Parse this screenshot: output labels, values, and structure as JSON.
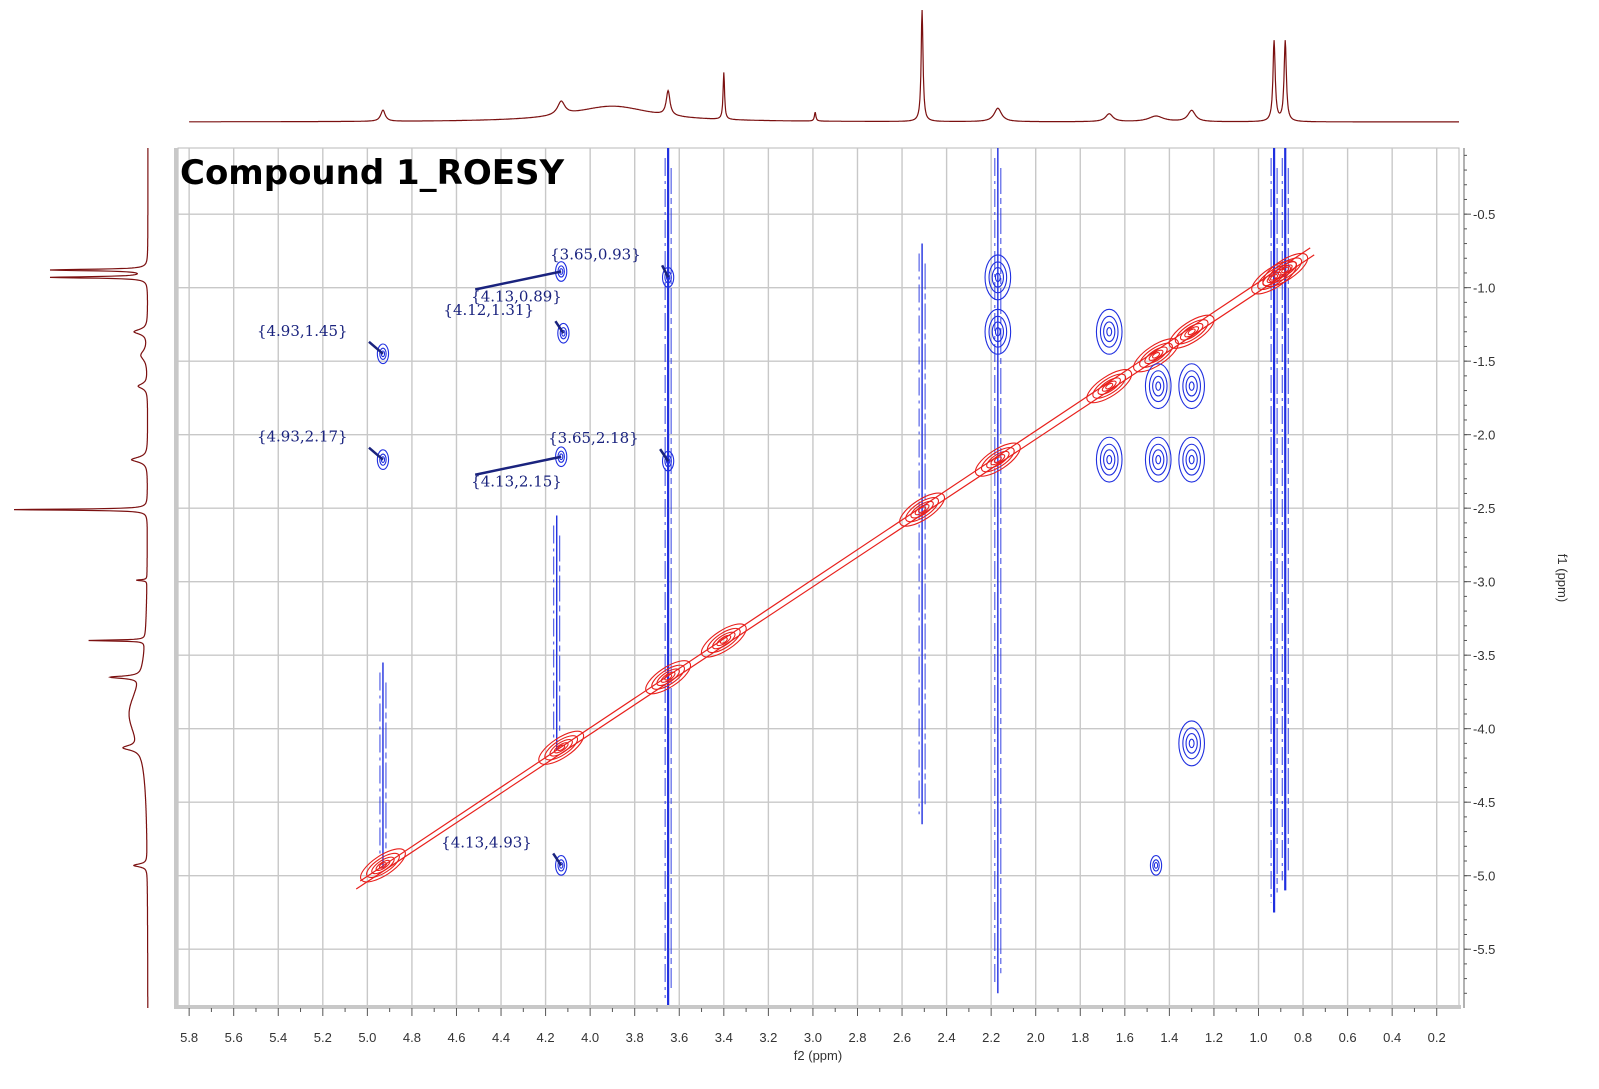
{
  "chart_data": {
    "type": "scatter",
    "subtype": "2D NMR ROESY contour plot",
    "title": "Compound 1_ROESY",
    "xlabel": "f2 (ppm)",
    "ylabel": "f1 (ppm)",
    "xlim": [
      5.85,
      0.1
    ],
    "ylim": [
      0.05,
      5.9
    ],
    "x_ticks": [
      "5.8",
      "5.6",
      "5.4",
      "5.2",
      "5.0",
      "4.8",
      "4.6",
      "4.4",
      "4.2",
      "4.0",
      "3.8",
      "3.6",
      "3.4",
      "3.2",
      "3.0",
      "2.8",
      "2.6",
      "2.4",
      "2.2",
      "2.0",
      "1.8",
      "1.6",
      "1.4",
      "1.2",
      "1.0",
      "0.8",
      "0.6",
      "0.4",
      "0.2"
    ],
    "y_ticks": [
      "0.5",
      "1.0",
      "1.5",
      "2.0",
      "2.5",
      "3.0",
      "3.5",
      "4.0",
      "4.5",
      "5.0",
      "5.5"
    ],
    "grid": true,
    "colors": {
      "positive_contour": "#e8201c",
      "negative_contour": "#1f2fe0",
      "projection": "#7b1010",
      "label": "#1a237e",
      "grid": "#c8c8c8"
    },
    "annotations": [
      {
        "text": "{3.65,0.93}",
        "x": 3.65,
        "y": 0.93
      },
      {
        "text": "{4.13,0.89}",
        "x": 4.13,
        "y": 0.89
      },
      {
        "text": "{4.12,1.31}",
        "x": 4.12,
        "y": 1.31
      },
      {
        "text": "{4.93,1.45}",
        "x": 4.93,
        "y": 1.45
      },
      {
        "text": "{4.93,2.17}",
        "x": 4.93,
        "y": 2.17
      },
      {
        "text": "{3.65,2.18}",
        "x": 3.65,
        "y": 2.18
      },
      {
        "text": "{4.13,2.15}",
        "x": 4.13,
        "y": 2.15
      },
      {
        "text": "{4.13,4.93}",
        "x": 4.13,
        "y": 4.93
      }
    ],
    "diagonal_peaks": [
      {
        "x": 4.93,
        "y": 4.93
      },
      {
        "x": 4.13,
        "y": 4.13
      },
      {
        "x": 3.65,
        "y": 3.65
      },
      {
        "x": 3.4,
        "y": 3.4
      },
      {
        "x": 2.51,
        "y": 2.51
      },
      {
        "x": 2.17,
        "y": 2.17
      },
      {
        "x": 1.67,
        "y": 1.67
      },
      {
        "x": 1.46,
        "y": 1.46
      },
      {
        "x": 1.3,
        "y": 1.3
      },
      {
        "x": 0.93,
        "y": 0.93
      },
      {
        "x": 0.88,
        "y": 0.88
      }
    ],
    "cross_peaks": [
      {
        "x": 4.93,
        "y": 1.45
      },
      {
        "x": 4.93,
        "y": 2.17
      },
      {
        "x": 4.13,
        "y": 0.89
      },
      {
        "x": 4.12,
        "y": 1.31
      },
      {
        "x": 4.13,
        "y": 2.15
      },
      {
        "x": 4.13,
        "y": 4.93
      },
      {
        "x": 3.65,
        "y": 0.93
      },
      {
        "x": 3.65,
        "y": 2.18
      },
      {
        "x": 2.17,
        "y": 0.93
      },
      {
        "x": 2.17,
        "y": 1.3
      },
      {
        "x": 1.67,
        "y": 1.3
      },
      {
        "x": 1.67,
        "y": 2.17
      },
      {
        "x": 1.3,
        "y": 1.67
      },
      {
        "x": 1.3,
        "y": 2.17
      },
      {
        "x": 1.45,
        "y": 2.17
      },
      {
        "x": 1.45,
        "y": 1.67
      },
      {
        "x": 1.3,
        "y": 4.1
      },
      {
        "x": 1.46,
        "y": 4.93
      }
    ],
    "t1_noise_stripes": [
      {
        "x": 4.93,
        "y_from": 3.55,
        "y_to": 4.95
      },
      {
        "x": 4.15,
        "y_from": 2.55,
        "y_to": 4.15
      },
      {
        "x": 3.65,
        "y_from": 0.05,
        "y_to": 5.9
      },
      {
        "x": 2.51,
        "y_from": 0.7,
        "y_to": 4.65
      },
      {
        "x": 2.17,
        "y_from": 0.05,
        "y_to": 5.8
      },
      {
        "x": 0.93,
        "y_from": 0.05,
        "y_to": 5.25
      },
      {
        "x": 0.88,
        "y_from": 0.05,
        "y_to": 5.1
      }
    ],
    "projection_peaks": [
      {
        "ppm": 4.93,
        "height": 0.1,
        "width": 0.012
      },
      {
        "ppm": 4.13,
        "height": 0.12,
        "width": 0.02
      },
      {
        "ppm": 3.9,
        "height": 0.14,
        "width": 0.22
      },
      {
        "ppm": 3.65,
        "height": 0.22,
        "width": 0.01
      },
      {
        "ppm": 3.4,
        "height": 0.42,
        "width": 0.004
      },
      {
        "ppm": 2.99,
        "height": 0.08,
        "width": 0.004
      },
      {
        "ppm": 2.51,
        "height": 1.0,
        "width": 0.005
      },
      {
        "ppm": 2.17,
        "height": 0.12,
        "width": 0.02
      },
      {
        "ppm": 1.67,
        "height": 0.07,
        "width": 0.02
      },
      {
        "ppm": 1.46,
        "height": 0.05,
        "width": 0.04
      },
      {
        "ppm": 1.3,
        "height": 0.1,
        "width": 0.02
      },
      {
        "ppm": 0.93,
        "height": 0.72,
        "width": 0.006
      },
      {
        "ppm": 0.88,
        "height": 0.72,
        "width": 0.006
      }
    ]
  }
}
